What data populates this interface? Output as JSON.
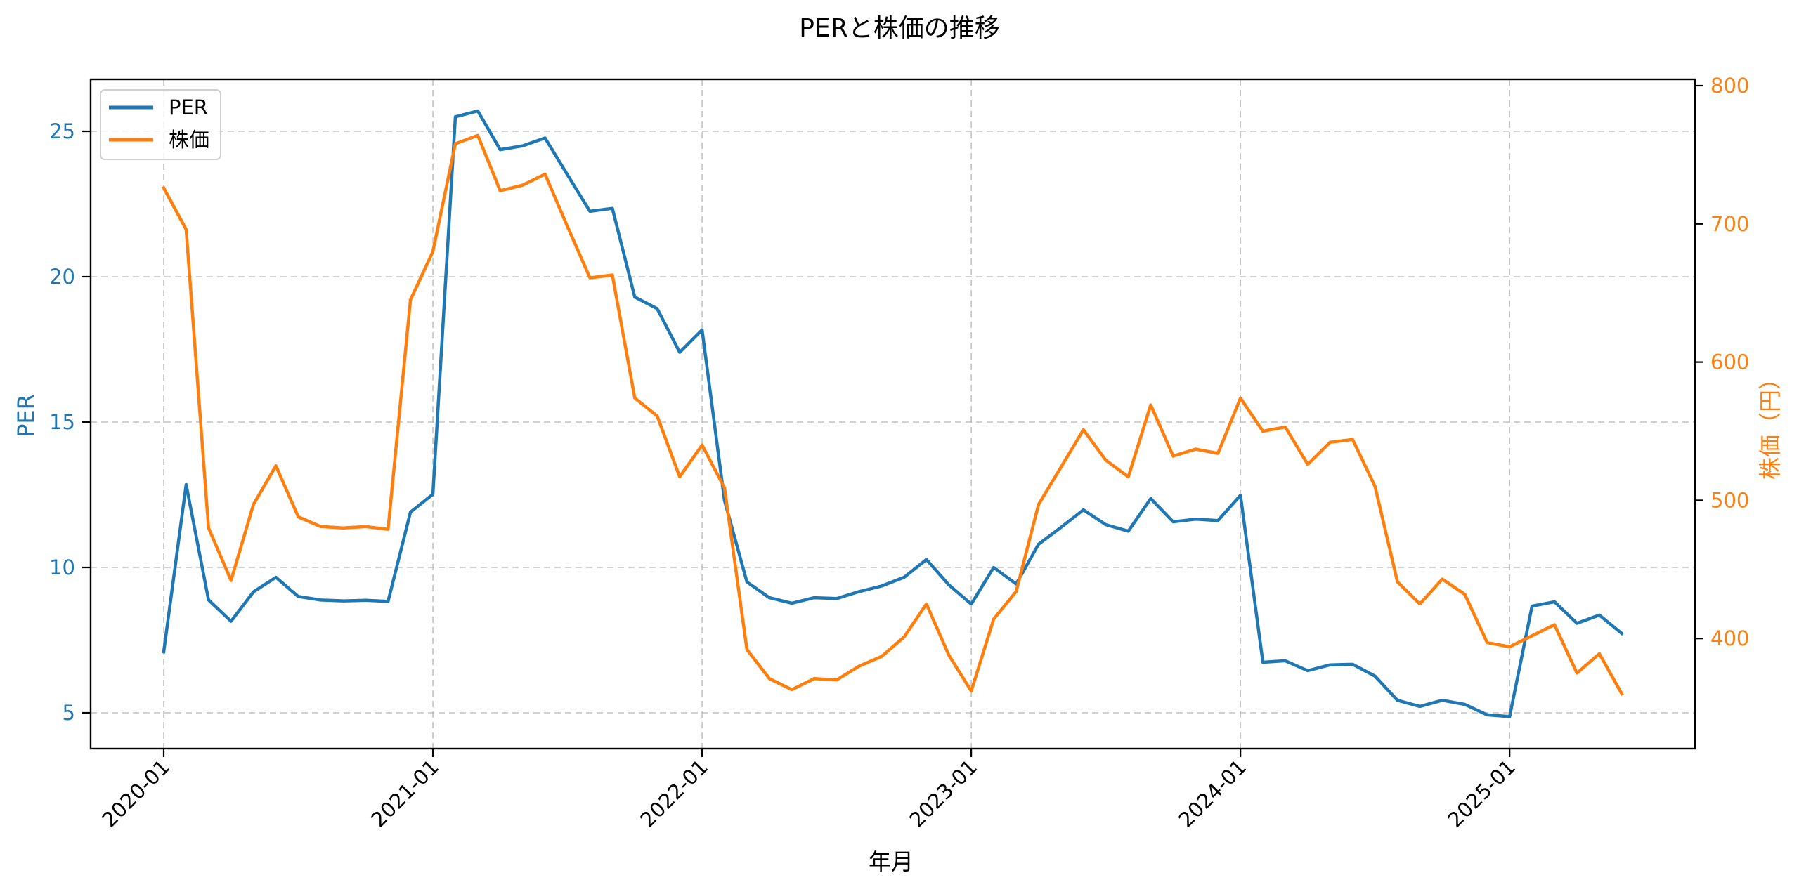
{
  "chart_data": {
    "type": "line",
    "title": "PERと株価の推移",
    "xlabel": "年月",
    "ylabel": "PER",
    "ylabel_right": "株価（円）",
    "x_tick_labels": [
      "2020-01",
      "2021-01",
      "2022-01",
      "2023-01",
      "2024-01",
      "2025-01"
    ],
    "y_ticks_left": [
      5,
      10,
      15,
      20,
      25
    ],
    "y_ticks_right": [
      400,
      500,
      600,
      700,
      800
    ],
    "ylim": [
      3.8,
      26.8
    ],
    "ylim_right": [
      320,
      805
    ],
    "grid": true,
    "legend_position": "upper left",
    "x": [
      "2020-01",
      "2020-02",
      "2020-03",
      "2020-04",
      "2020-05",
      "2020-06",
      "2020-07",
      "2020-08",
      "2020-09",
      "2020-10",
      "2020-11",
      "2020-12",
      "2021-01",
      "2021-02",
      "2021-03",
      "2021-04",
      "2021-05",
      "2021-06",
      "2021-07",
      "2021-08",
      "2021-09",
      "2021-10",
      "2021-11",
      "2021-12",
      "2022-01",
      "2022-02",
      "2022-03",
      "2022-04",
      "2022-05",
      "2022-06",
      "2022-07",
      "2022-08",
      "2022-09",
      "2022-10",
      "2022-11",
      "2022-12",
      "2023-01",
      "2023-02",
      "2023-03",
      "2023-04",
      "2023-05",
      "2023-06",
      "2023-07",
      "2023-08",
      "2023-09",
      "2023-10",
      "2023-11",
      "2023-12",
      "2024-01",
      "2024-02",
      "2024-03",
      "2024-04",
      "2024-05",
      "2024-06",
      "2024-07",
      "2024-08",
      "2024-09",
      "2024-10",
      "2024-11",
      "2024-12",
      "2025-01",
      "2025-02",
      "2025-03",
      "2025-04",
      "2025-05",
      "2025-06"
    ],
    "series": [
      {
        "name": "PER",
        "axis": "left",
        "color": "#1f77b4",
        "values": [
          7.1,
          12.85,
          8.88,
          8.15,
          9.16,
          9.66,
          9.0,
          8.88,
          8.85,
          8.87,
          8.83,
          11.9,
          12.52,
          25.5,
          25.7,
          24.37,
          24.5,
          24.77,
          23.5,
          22.25,
          22.35,
          19.3,
          18.9,
          17.4,
          18.17,
          12.3,
          9.5,
          8.96,
          8.77,
          8.96,
          8.93,
          9.17,
          9.36,
          9.66,
          10.27,
          9.4,
          8.74,
          10.0,
          9.43,
          10.8,
          11.38,
          11.98,
          11.47,
          11.25,
          12.37,
          11.57,
          11.66,
          11.61,
          12.48,
          6.74,
          6.79,
          6.45,
          6.65,
          6.67,
          6.26,
          5.43,
          5.22,
          5.43,
          5.29,
          4.93,
          4.87,
          8.67,
          8.82,
          8.08,
          8.36,
          7.73
        ]
      },
      {
        "name": "株価",
        "axis": "right",
        "color": "#ff7f0e",
        "values": [
          726,
          696,
          480,
          442,
          497,
          525,
          488,
          481,
          480,
          481,
          479,
          645,
          680,
          758,
          764,
          724,
          728,
          736,
          698,
          661,
          663,
          574,
          561,
          517,
          540,
          509,
          392,
          371,
          363,
          371,
          370,
          380,
          387,
          401,
          425,
          388,
          362,
          414,
          434,
          497,
          524,
          551,
          529,
          517,
          569,
          532,
          537,
          534,
          574,
          550,
          553,
          526,
          542,
          544,
          510,
          441,
          425,
          443,
          432,
          397,
          394,
          402,
          410,
          375,
          389,
          360
        ]
      }
    ]
  },
  "legend": {
    "items": [
      {
        "label": "PER",
        "color": "#1f77b4"
      },
      {
        "label": "株価",
        "color": "#ff7f0e"
      }
    ]
  },
  "colors": {
    "per": "#1f77b4",
    "price": "#ff7f0e",
    "grid": "#b0b0b0",
    "axes": "#000000"
  }
}
